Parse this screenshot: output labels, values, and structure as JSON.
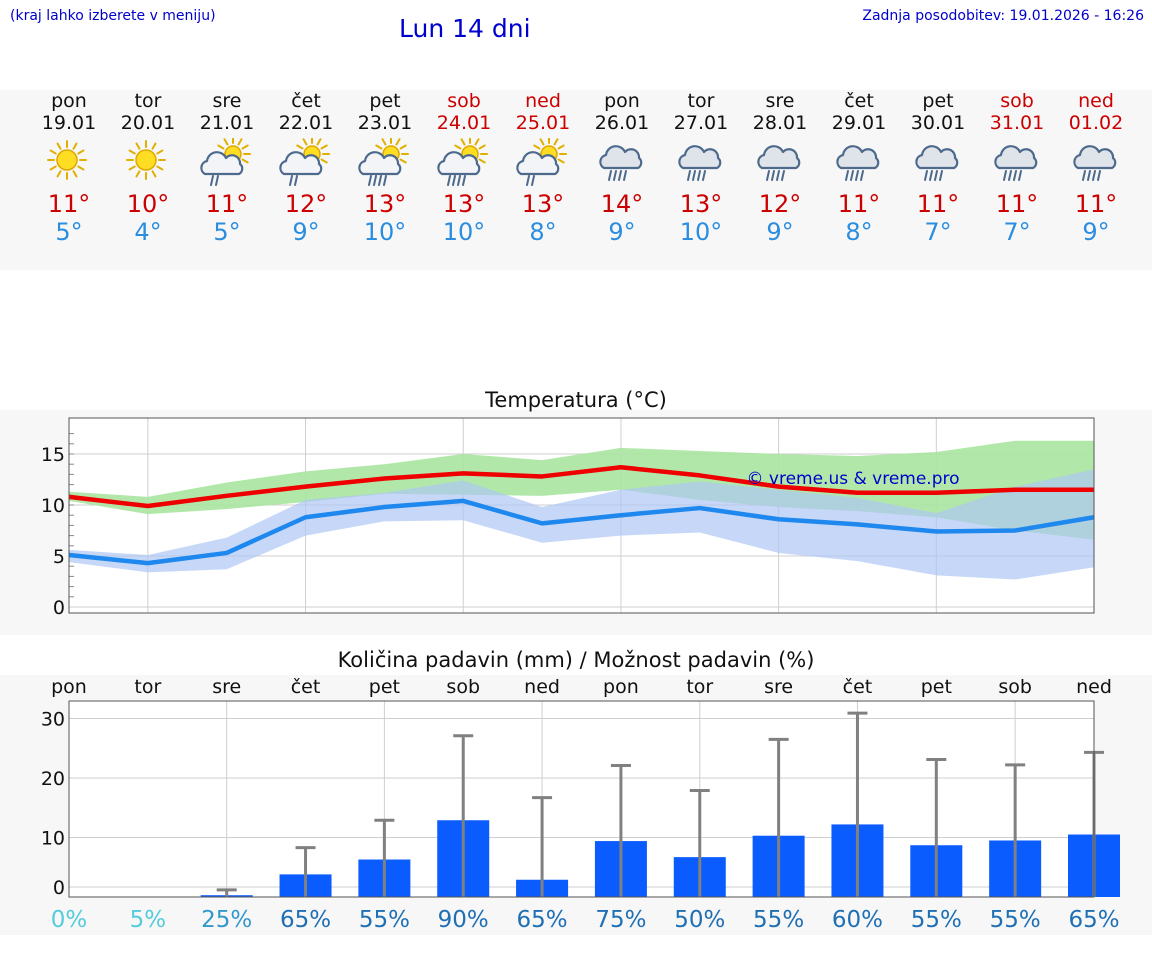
{
  "header": {
    "region_hint": "(kraj lahko izberete v meniju)",
    "title": "Lun 14 dni",
    "updated": "Zadnja posodobitev: 19.01.2026 - 16:26"
  },
  "days": [
    {
      "name": "pon",
      "date": "19.01",
      "weekend": false,
      "icon": "sun-icon",
      "max": "11°",
      "min": "5°"
    },
    {
      "name": "tor",
      "date": "20.01",
      "weekend": false,
      "icon": "sun-icon",
      "max": "10°",
      "min": "4°"
    },
    {
      "name": "sre",
      "date": "21.01",
      "weekend": false,
      "icon": "sun-cloud-rain-icon",
      "max": "11°",
      "min": "5°"
    },
    {
      "name": "čet",
      "date": "22.01",
      "weekend": false,
      "icon": "sun-cloud-rain-icon",
      "max": "12°",
      "min": "9°"
    },
    {
      "name": "pet",
      "date": "23.01",
      "weekend": false,
      "icon": "sun-cloud-heavy-rain-icon",
      "max": "13°",
      "min": "10°"
    },
    {
      "name": "sob",
      "date": "24.01",
      "weekend": true,
      "icon": "sun-cloud-heavy-rain-icon",
      "max": "13°",
      "min": "10°"
    },
    {
      "name": "ned",
      "date": "25.01",
      "weekend": true,
      "icon": "sun-cloud-rain-icon",
      "max": "13°",
      "min": "8°"
    },
    {
      "name": "pon",
      "date": "26.01",
      "weekend": false,
      "icon": "cloud-rain-icon",
      "max": "14°",
      "min": "9°"
    },
    {
      "name": "tor",
      "date": "27.01",
      "weekend": false,
      "icon": "cloud-rain-icon",
      "max": "13°",
      "min": "10°"
    },
    {
      "name": "sre",
      "date": "28.01",
      "weekend": false,
      "icon": "cloud-rain-icon",
      "max": "12°",
      "min": "9°"
    },
    {
      "name": "čet",
      "date": "29.01",
      "weekend": false,
      "icon": "cloud-rain-icon",
      "max": "11°",
      "min": "8°"
    },
    {
      "name": "pet",
      "date": "30.01",
      "weekend": false,
      "icon": "cloud-rain-icon",
      "max": "11°",
      "min": "7°"
    },
    {
      "name": "sob",
      "date": "31.01",
      "weekend": true,
      "icon": "cloud-rain-icon",
      "max": "11°",
      "min": "7°"
    },
    {
      "name": "ned",
      "date": "01.02",
      "weekend": true,
      "icon": "cloud-rain-icon",
      "max": "11°",
      "min": "9°"
    }
  ],
  "colors": {
    "max_line": "#ee0000",
    "max_band": "#a8e6a0",
    "min_line": "#1e88ee",
    "min_band": "#aec6f4",
    "bar": "#0b5cff",
    "error_bar": "#808080"
  },
  "chart_data": [
    {
      "type": "line",
      "title": "Temperatura (°C)",
      "watermark": "© vreme.us & vreme.pro",
      "ylim": [
        0,
        18
      ],
      "yticks": [
        0,
        5,
        10,
        15
      ],
      "x": [
        0,
        1,
        2,
        3,
        4,
        5,
        6,
        7,
        8,
        9,
        10,
        11,
        12,
        13
      ],
      "series": [
        {
          "name": "max",
          "values": [
            10.8,
            9.9,
            10.9,
            11.8,
            12.6,
            13.1,
            12.8,
            13.7,
            12.9,
            11.8,
            11.2,
            11.2,
            11.5,
            11.5
          ],
          "band_low": [
            10.4,
            9.1,
            9.6,
            10.3,
            11.1,
            11.0,
            10.9,
            11.5,
            10.5,
            9.8,
            9.4,
            8.8,
            7.5,
            6.6
          ],
          "band_high": [
            11.3,
            10.8,
            12.2,
            13.3,
            14.0,
            15.0,
            14.4,
            15.6,
            15.3,
            15.0,
            14.8,
            15.2,
            16.3,
            16.3
          ]
        },
        {
          "name": "min",
          "values": [
            5.1,
            4.3,
            5.3,
            8.8,
            9.8,
            10.4,
            8.2,
            9.0,
            9.7,
            8.6,
            8.1,
            7.4,
            7.5,
            8.8
          ],
          "band_low": [
            4.4,
            3.4,
            3.7,
            7.0,
            8.4,
            8.5,
            6.3,
            7.0,
            7.3,
            5.3,
            4.5,
            3.1,
            2.7,
            3.9
          ],
          "band_high": [
            5.6,
            5.1,
            6.8,
            10.5,
            11.2,
            12.4,
            9.8,
            11.5,
            12.3,
            11.5,
            10.7,
            9.2,
            11.8,
            13.5
          ]
        }
      ]
    },
    {
      "type": "bar",
      "title": "Količina padavin (mm) / Možnost padavin (%)",
      "ylim": [
        0,
        33
      ],
      "yticks": [
        0,
        10,
        20,
        30
      ],
      "categories": [
        "pon",
        "tor",
        "sre",
        "čet",
        "pet",
        "sob",
        "ned",
        "pon",
        "tor",
        "sre",
        "čet",
        "pet",
        "sob",
        "ned"
      ],
      "values": [
        0,
        0,
        0.3,
        3.8,
        6.3,
        12.9,
        2.9,
        9.4,
        6.7,
        10.3,
        12.2,
        8.7,
        9.5,
        10.5
      ],
      "error_high": [
        0,
        0,
        1.2,
        8.3,
        12.9,
        27.1,
        16.7,
        22.1,
        17.9,
        26.5,
        30.9,
        23.1,
        22.2,
        24.3
      ],
      "probability": [
        "0%",
        "5%",
        "25%",
        "65%",
        "55%",
        "90%",
        "65%",
        "75%",
        "50%",
        "55%",
        "60%",
        "55%",
        "55%",
        "65%"
      ],
      "probability_colors": [
        "#55ccdd",
        "#55ccdd",
        "#3399cc",
        "#1f6fb5",
        "#1f6fb5",
        "#1f6fb5",
        "#1f6fb5",
        "#1f6fb5",
        "#1f6fb5",
        "#1f6fb5",
        "#1f6fb5",
        "#1f6fb5",
        "#1f6fb5",
        "#1f6fb5"
      ]
    }
  ]
}
